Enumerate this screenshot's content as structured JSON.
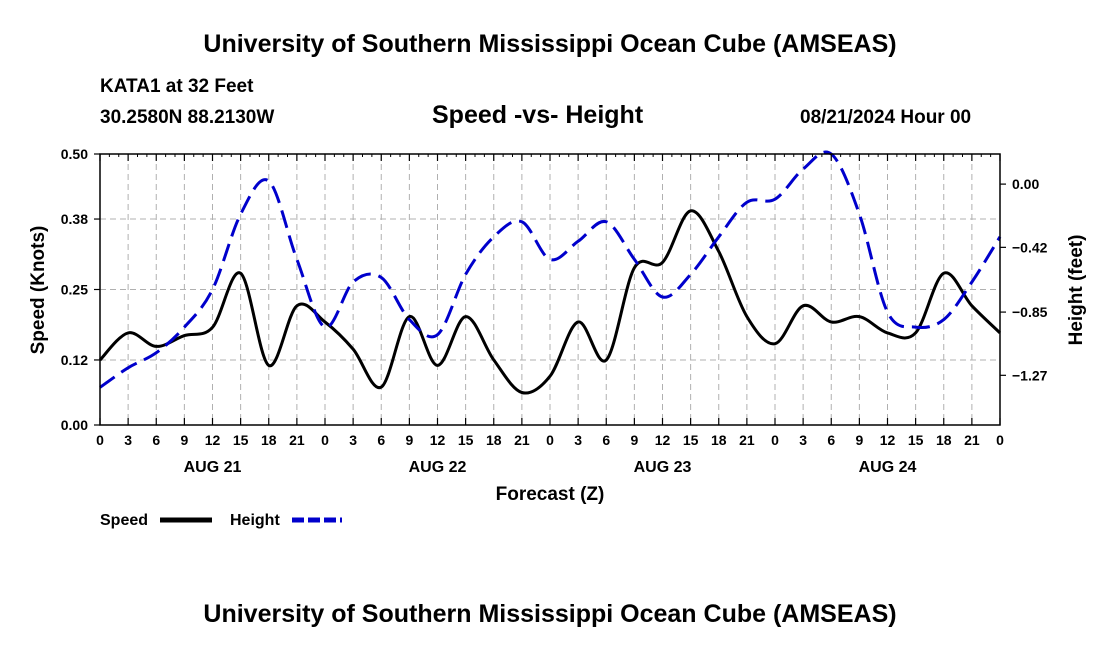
{
  "header": {
    "title": "University of Southern Mississippi Ocean Cube (AMSEAS)",
    "station": "KATA1 at 32 Feet",
    "coords": "30.2580N  88.2130W",
    "chart_title": "Speed -vs- Height",
    "datetime": "08/21/2024 Hour 00"
  },
  "footer": {
    "title": "University of Southern Mississippi Ocean Cube (AMSEAS)"
  },
  "colors": {
    "speed": "#000000",
    "height": "#0000cc",
    "grid": "#b0b0b0"
  },
  "chart_data": {
    "type": "line",
    "title": "Speed -vs- Height",
    "xlabel": "Forecast (Z)",
    "ylabel_left": "Speed (Knots)",
    "ylabel_right": "Height (feet)",
    "x_range": [
      0,
      96
    ],
    "y_left_range": [
      0,
      0.5
    ],
    "y_right_range": [
      -1.6,
      0.2
    ],
    "y_left_ticks": [
      0.0,
      0.12,
      0.25,
      0.38,
      0.5
    ],
    "y_left_tick_labels": [
      "0.00",
      "0.12",
      "0.25",
      "0.38",
      "0.50"
    ],
    "y_right_ticks": [
      -1.27,
      -0.85,
      -0.42,
      0.0
    ],
    "y_right_tick_labels": [
      "−1.27",
      "−0.85",
      "−0.42",
      "0.00"
    ],
    "x_ticks": [
      0,
      3,
      6,
      9,
      12,
      15,
      18,
      21,
      24,
      27,
      30,
      33,
      36,
      39,
      42,
      45,
      48,
      51,
      54,
      57,
      60,
      63,
      66,
      69,
      72,
      75,
      78,
      81,
      84,
      87,
      90,
      93,
      96
    ],
    "x_tick_labels": [
      "0",
      "3",
      "6",
      "9",
      "12",
      "15",
      "18",
      "21",
      "0",
      "3",
      "6",
      "9",
      "12",
      "15",
      "18",
      "21",
      "0",
      "3",
      "6",
      "9",
      "12",
      "15",
      "18",
      "21",
      "0",
      "3",
      "6",
      "9",
      "12",
      "15",
      "18",
      "21",
      "0"
    ],
    "day_labels": [
      {
        "x": 12,
        "label": "AUG 21"
      },
      {
        "x": 36,
        "label": "AUG 22"
      },
      {
        "x": 60,
        "label": "AUG 23"
      },
      {
        "x": 84,
        "label": "AUG 24"
      }
    ],
    "grid": true,
    "legend": {
      "placement": "bottom-left",
      "entries": [
        "Speed",
        "Height"
      ]
    },
    "series": [
      {
        "name": "Speed",
        "axis": "left",
        "style": "solid",
        "x": [
          0,
          3,
          6,
          9,
          12,
          15,
          18,
          21,
          24,
          27,
          30,
          33,
          36,
          39,
          42,
          45,
          48,
          51,
          54,
          57,
          60,
          63,
          66,
          69,
          72,
          75,
          78,
          81,
          84,
          87,
          90,
          93,
          96
        ],
        "values": [
          0.12,
          0.17,
          0.145,
          0.165,
          0.18,
          0.28,
          0.11,
          0.22,
          0.19,
          0.14,
          0.07,
          0.2,
          0.11,
          0.2,
          0.12,
          0.06,
          0.09,
          0.19,
          0.12,
          0.29,
          0.3,
          0.395,
          0.32,
          0.2,
          0.15,
          0.22,
          0.19,
          0.2,
          0.17,
          0.17,
          0.28,
          0.22,
          0.17
        ]
      },
      {
        "name": "Height",
        "axis": "right",
        "style": "dashed",
        "x": [
          0,
          3,
          6,
          9,
          12,
          15,
          18,
          21,
          24,
          27,
          30,
          33,
          36,
          39,
          42,
          45,
          48,
          51,
          54,
          57,
          60,
          63,
          66,
          69,
          72,
          75,
          78,
          81,
          84,
          87,
          90,
          93,
          96
        ],
        "values": [
          -1.35,
          -1.22,
          -1.12,
          -0.95,
          -0.7,
          -0.2,
          0.02,
          -0.5,
          -0.95,
          -0.65,
          -0.62,
          -0.9,
          -1.0,
          -0.6,
          -0.35,
          -0.25,
          -0.5,
          -0.38,
          -0.25,
          -0.5,
          -0.75,
          -0.6,
          -0.35,
          -0.12,
          -0.1,
          0.1,
          0.2,
          -0.2,
          -0.85,
          -0.95,
          -0.9,
          -0.65,
          -0.35
        ]
      }
    ]
  }
}
